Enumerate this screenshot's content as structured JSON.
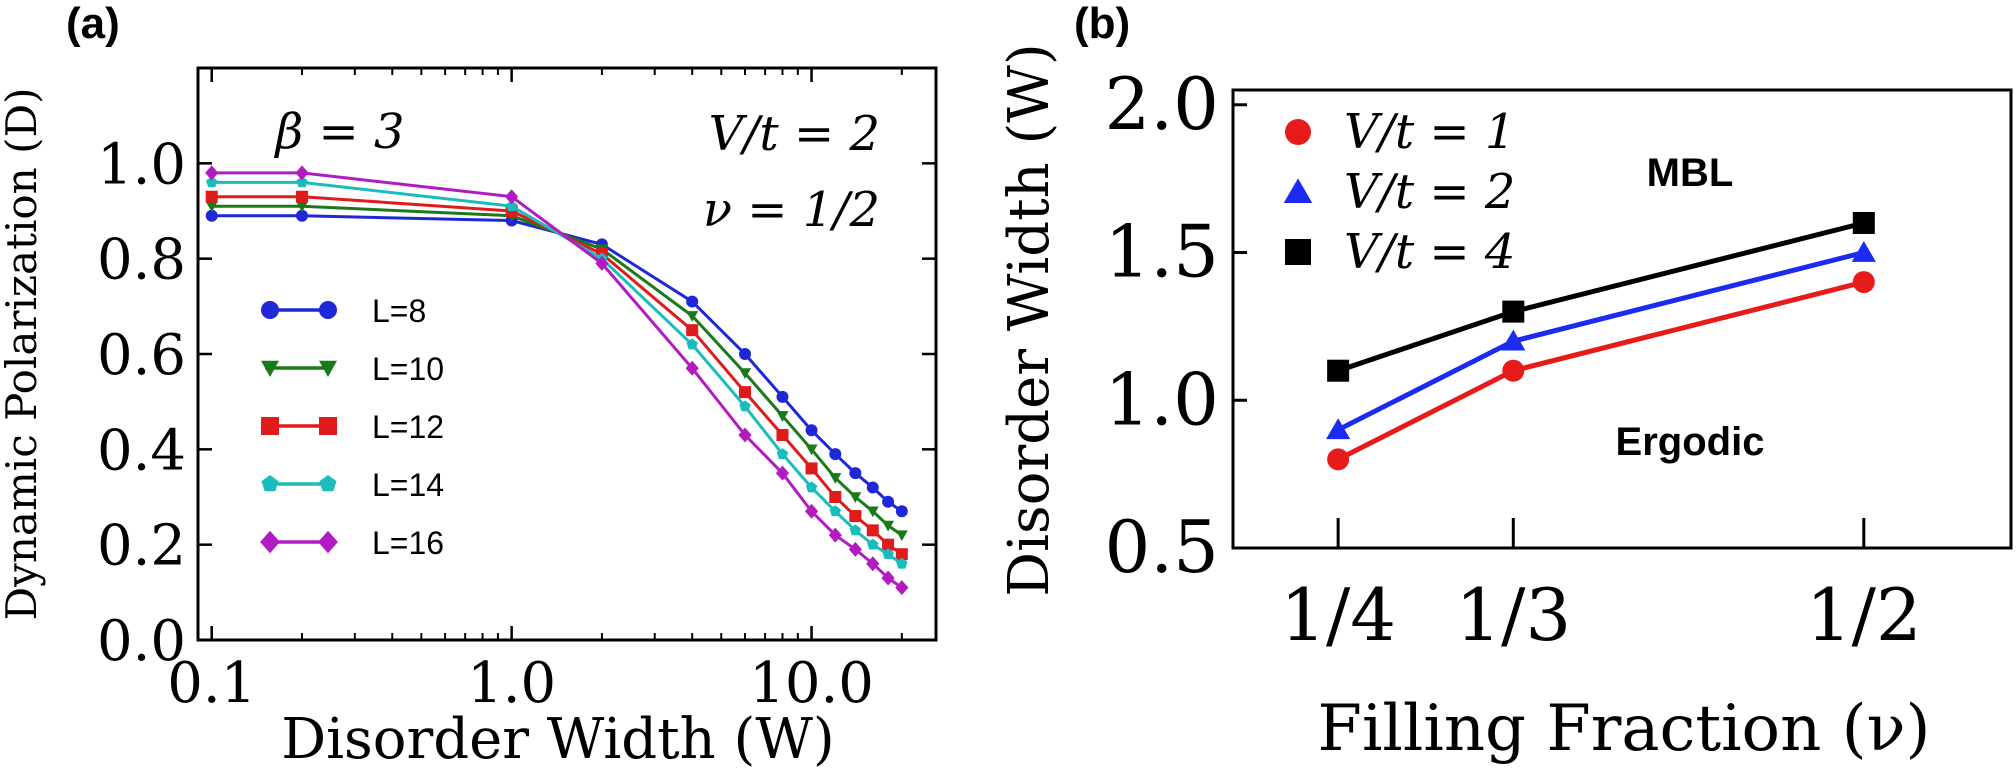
{
  "panels": {
    "a": {
      "label": "(a)",
      "annotations": {
        "beta": "β = 3",
        "vt": "V/t = 2",
        "nu": "ν = 1/2"
      },
      "legend": [
        "L=8",
        "L=10",
        "L=12",
        "L=14",
        "L=16"
      ]
    },
    "b": {
      "label": "(b)",
      "annotations": {
        "mbl": "MBL",
        "ergodic": "Ergodic"
      },
      "legend": [
        "V/t = 1",
        "V/t = 2",
        "V/t = 4"
      ]
    }
  },
  "chart_data": [
    {
      "type": "line",
      "xscale": "log",
      "xlabel": "Disorder Width  (W)",
      "ylabel": "Dynamic Polarization  (D)",
      "xlim": [
        0.09,
        26
      ],
      "ylim": [
        0.0,
        1.2
      ],
      "xticks": [
        0.1,
        1.0,
        10.0
      ],
      "xticklabels": [
        "0.1",
        "1.0",
        "10.0"
      ],
      "yticks": [
        0.0,
        0.2,
        0.4,
        0.6,
        0.8,
        1.0
      ],
      "yticklabels": [
        "0.0",
        "0.2",
        "0.4",
        "0.6",
        "0.8",
        "1.0"
      ],
      "grid": false,
      "legend_position": "lower-left",
      "x": [
        0.1,
        0.2,
        1.0,
        2.0,
        4.0,
        6.0,
        8.0,
        10.0,
        12.0,
        14.0,
        16.0,
        18.0,
        20.0
      ],
      "series": [
        {
          "name": "L=8",
          "color": "#1f28d6",
          "marker": "circle",
          "values": [
            0.89,
            0.89,
            0.88,
            0.83,
            0.71,
            0.6,
            0.51,
            0.44,
            0.39,
            0.35,
            0.32,
            0.29,
            0.27
          ]
        },
        {
          "name": "L=10",
          "color": "#1a7a1a",
          "marker": "triangle-down",
          "values": [
            0.91,
            0.91,
            0.89,
            0.82,
            0.68,
            0.56,
            0.47,
            0.4,
            0.34,
            0.3,
            0.27,
            0.24,
            0.22
          ]
        },
        {
          "name": "L=12",
          "color": "#e01b1b",
          "marker": "square",
          "values": [
            0.93,
            0.93,
            0.9,
            0.81,
            0.65,
            0.52,
            0.43,
            0.36,
            0.3,
            0.26,
            0.23,
            0.2,
            0.18
          ]
        },
        {
          "name": "L=14",
          "color": "#1bbcbc",
          "marker": "pentagon",
          "values": [
            0.96,
            0.96,
            0.91,
            0.8,
            0.62,
            0.49,
            0.39,
            0.32,
            0.27,
            0.23,
            0.2,
            0.18,
            0.16
          ]
        },
        {
          "name": "L=16",
          "color": "#b21bc2",
          "marker": "diamond",
          "values": [
            0.98,
            0.98,
            0.93,
            0.79,
            0.57,
            0.43,
            0.35,
            0.27,
            0.22,
            0.19,
            0.16,
            0.13,
            0.11
          ]
        }
      ]
    },
    {
      "type": "line",
      "xlabel": "Filling Fraction  (ν)",
      "ylabel": "Disorder Width  (W)",
      "xlim": [
        0.2,
        0.57
      ],
      "ylim": [
        0.5,
        2.05
      ],
      "xticks": [
        0.25,
        0.3333,
        0.5
      ],
      "xticklabels": [
        "1/4",
        "1/3",
        "1/2"
      ],
      "yticks": [
        0.5,
        1.0,
        1.5,
        2.0
      ],
      "yticklabels": [
        "0.5",
        "1.0",
        "1.5",
        "2.0"
      ],
      "grid": false,
      "legend_position": "top-left",
      "x": [
        0.25,
        0.3333,
        0.5
      ],
      "series": [
        {
          "name": "V/t = 1",
          "color": "#e81b1b",
          "line_color": "#e81b1b",
          "marker": "circle",
          "values": [
            0.8,
            1.1,
            1.4
          ]
        },
        {
          "name": "V/t = 2",
          "color": "#1b2bf0",
          "line_color": "#1b2bf0",
          "marker": "triangle",
          "values": [
            0.9,
            1.2,
            1.5
          ]
        },
        {
          "name": "V/t = 4",
          "color": "#000000",
          "line_color": "#000000",
          "marker": "square",
          "values": [
            1.1,
            1.3,
            1.6
          ]
        }
      ]
    }
  ]
}
